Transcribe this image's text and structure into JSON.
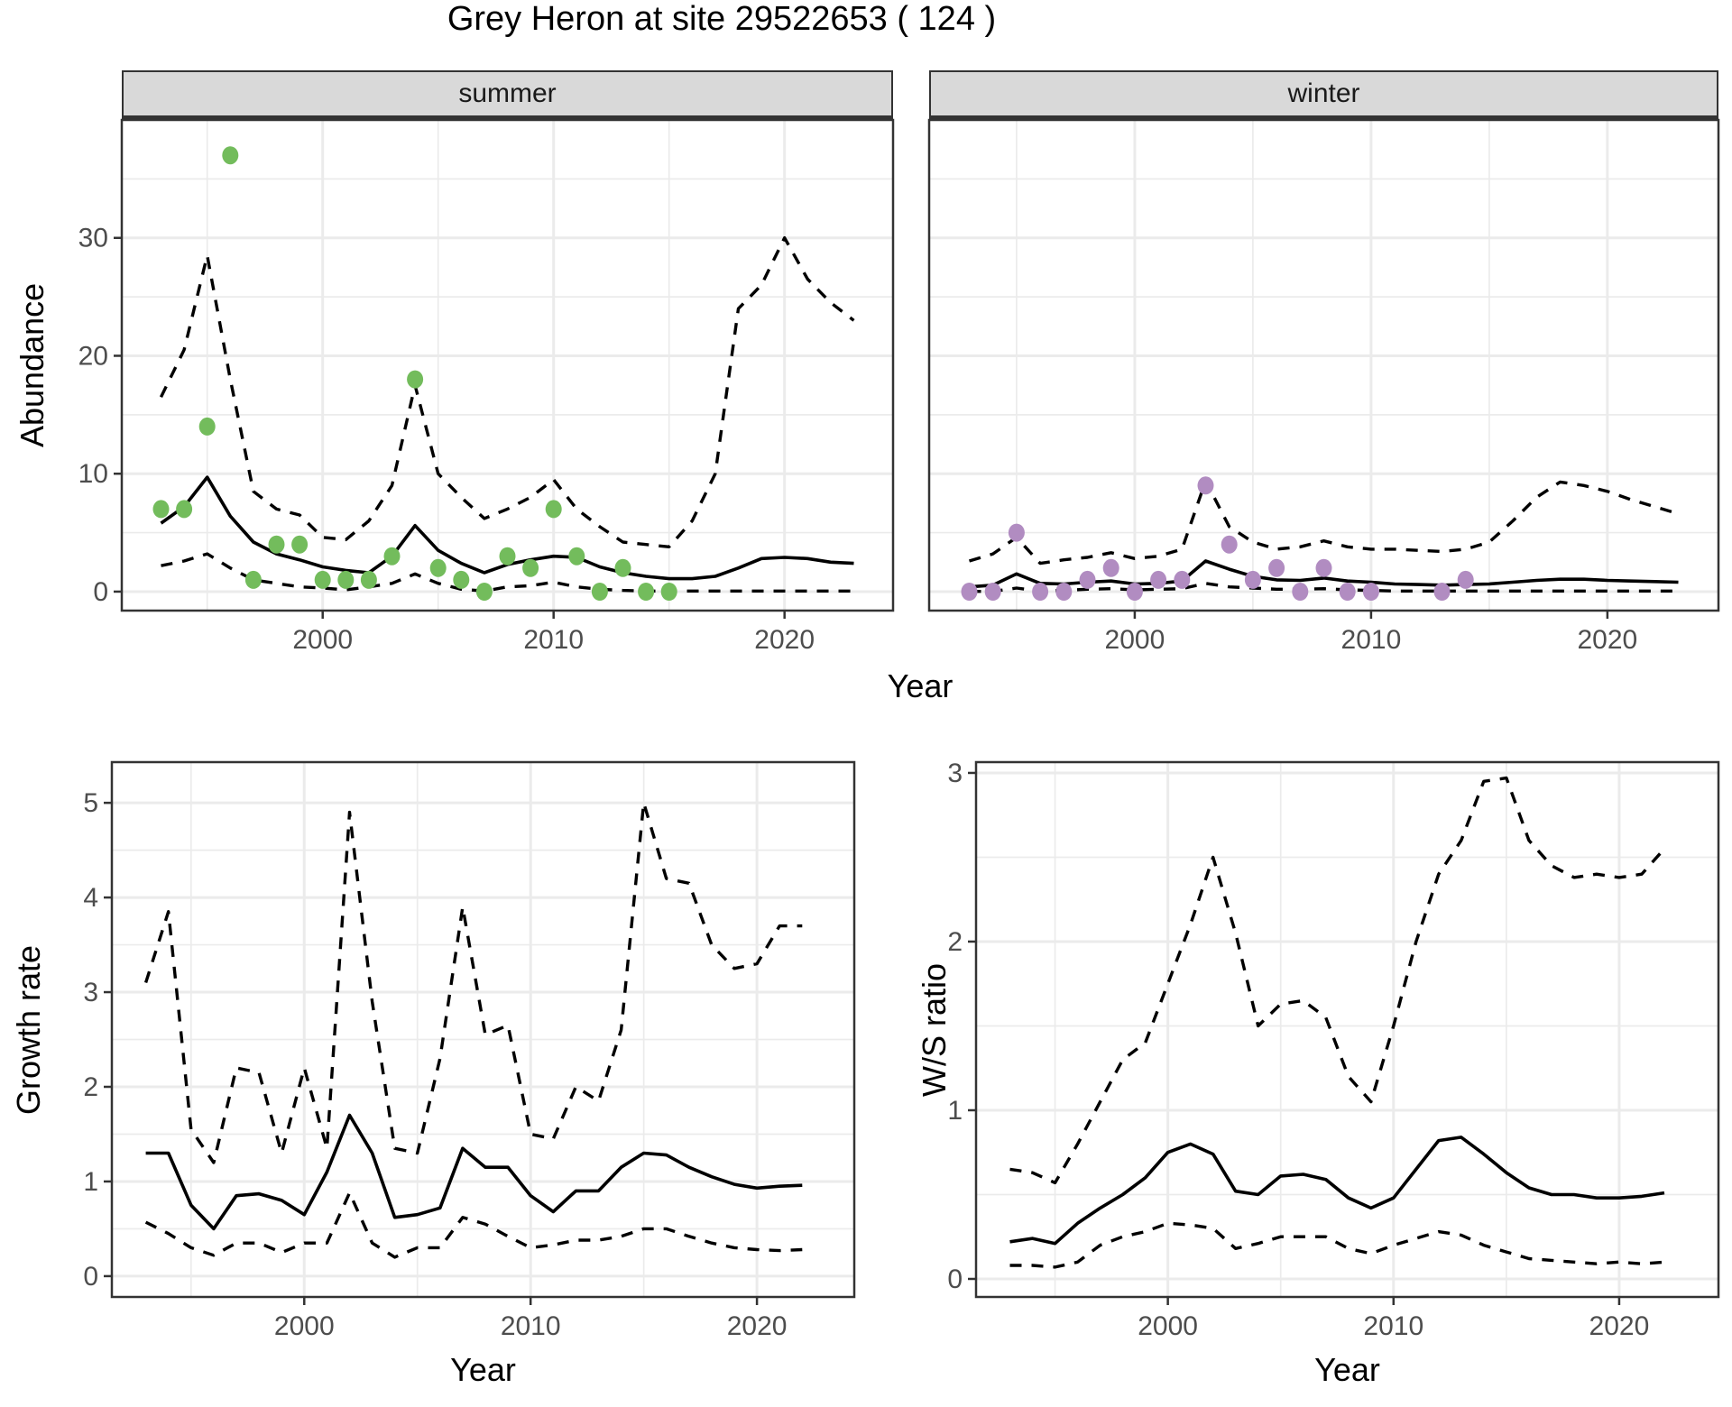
{
  "title": "Grey Heron at site 29522653 ( 124 )",
  "colors": {
    "summer_dot": "#73bc5c",
    "winter_dot": "#b18cc1",
    "strip_bg": "#d9d9d9",
    "grid": "#ebebeb",
    "tick_text": "#4d4d4d",
    "line": "#000000",
    "panel_border": "#333333"
  },
  "chart_data": [
    {
      "id": "abundance-summer",
      "type": "line",
      "facet_label": "summer",
      "ylabel": "Abundance",
      "xlabel": "Year",
      "xlim": [
        1991.3,
        2024.7
      ],
      "ylim": [
        -1.61,
        40.0
      ],
      "x_ticks": [
        2000,
        2010,
        2020
      ],
      "x_minor": [
        1995,
        2005,
        2015
      ],
      "y_ticks": [
        0,
        10,
        20,
        30
      ],
      "y_minor": [
        5,
        15,
        25,
        35
      ],
      "years": [
        1993,
        1994,
        1995,
        1996,
        1997,
        1998,
        1999,
        2000,
        2001,
        2002,
        2003,
        2004,
        2005,
        2006,
        2007,
        2008,
        2009,
        2010,
        2011,
        2012,
        2013,
        2014,
        2015,
        2016,
        2017,
        2018,
        2019,
        2020,
        2021,
        2022,
        2023
      ],
      "series": [
        {
          "name": "median",
          "style": "solid",
          "values": [
            5.8,
            7.2,
            9.7,
            6.4,
            4.2,
            3.2,
            2.7,
            2.1,
            1.8,
            1.6,
            3.0,
            5.6,
            3.5,
            2.4,
            1.6,
            2.3,
            2.7,
            3.0,
            2.9,
            2.1,
            1.6,
            1.3,
            1.1,
            1.1,
            1.3,
            2.0,
            2.8,
            2.9,
            2.8,
            2.5,
            2.4
          ]
        },
        {
          "name": "upper_ci",
          "style": "dashed",
          "values": [
            16.5,
            20.5,
            28.5,
            18.0,
            8.5,
            7.0,
            6.5,
            4.6,
            4.4,
            6.0,
            9.0,
            17.5,
            10.0,
            8.0,
            6.2,
            7.0,
            8.0,
            9.5,
            7.0,
            5.5,
            4.2,
            4.0,
            3.8,
            6.0,
            10.0,
            24.0,
            26.0,
            30.0,
            26.5,
            24.5,
            23.0
          ]
        },
        {
          "name": "lower_ci",
          "style": "dashed",
          "values": [
            2.2,
            2.6,
            3.2,
            2.0,
            1.0,
            0.7,
            0.4,
            0.3,
            0.15,
            0.4,
            0.7,
            1.5,
            0.7,
            0.2,
            0.05,
            0.4,
            0.5,
            0.8,
            0.4,
            0.2,
            0.1,
            0.05,
            0.05,
            0.05,
            0.05,
            0.05,
            0.05,
            0.05,
            0.05,
            0.05,
            0.05
          ]
        }
      ],
      "points": {
        "name": "observed-counts",
        "color_key": "summer_dot",
        "years": [
          1993,
          1994,
          1995,
          1996,
          1997,
          1998,
          1999,
          2000,
          2001,
          2002,
          2003,
          2004,
          2005,
          2006,
          2007,
          2008,
          2009,
          2010,
          2011,
          2012,
          2013,
          2014,
          2015
        ],
        "values": [
          7,
          7,
          14,
          37,
          1,
          4,
          4,
          1,
          1,
          1,
          3,
          18,
          2,
          1,
          0,
          3,
          2,
          7,
          3,
          0,
          2,
          0,
          0
        ]
      }
    },
    {
      "id": "abundance-winter",
      "type": "line",
      "facet_label": "winter",
      "ylabel": "Abundance",
      "xlabel": "Year",
      "xlim": [
        1991.3,
        2024.7
      ],
      "ylim": [
        -1.61,
        40.0
      ],
      "x_ticks": [
        2000,
        2010,
        2020
      ],
      "x_minor": [
        1995,
        2005,
        2015
      ],
      "y_ticks": [
        0,
        10,
        20,
        30
      ],
      "y_minor": [
        5,
        15,
        25,
        35
      ],
      "years": [
        1993,
        1994,
        1995,
        1996,
        1997,
        1998,
        1999,
        2000,
        2001,
        2002,
        2003,
        2004,
        2005,
        2006,
        2007,
        2008,
        2009,
        2010,
        2011,
        2012,
        2013,
        2014,
        2015,
        2016,
        2017,
        2018,
        2019,
        2020,
        2021,
        2022,
        2023
      ],
      "series": [
        {
          "name": "median",
          "style": "solid",
          "values": [
            0.4,
            0.55,
            1.5,
            0.7,
            0.65,
            0.8,
            0.9,
            0.65,
            0.7,
            0.9,
            2.6,
            1.9,
            1.3,
            1.0,
            0.95,
            1.15,
            0.9,
            0.8,
            0.65,
            0.6,
            0.55,
            0.6,
            0.65,
            0.8,
            0.95,
            1.05,
            1.05,
            0.95,
            0.9,
            0.85,
            0.8
          ]
        },
        {
          "name": "upper_ci",
          "style": "dashed",
          "values": [
            2.6,
            3.2,
            4.6,
            2.4,
            2.7,
            2.9,
            3.3,
            2.8,
            3.0,
            3.6,
            9.4,
            5.5,
            4.2,
            3.6,
            3.8,
            4.3,
            3.8,
            3.6,
            3.6,
            3.5,
            3.4,
            3.6,
            4.2,
            6.0,
            8.0,
            9.3,
            9.0,
            8.5,
            7.8,
            7.2,
            6.6
          ]
        },
        {
          "name": "lower_ci",
          "style": "dashed",
          "values": [
            0.02,
            0.02,
            0.3,
            0.05,
            0.1,
            0.2,
            0.25,
            0.15,
            0.2,
            0.25,
            0.7,
            0.4,
            0.3,
            0.2,
            0.2,
            0.25,
            0.15,
            0.1,
            0.05,
            0.05,
            0.05,
            0.05,
            0.05,
            0.05,
            0.05,
            0.05,
            0.05,
            0.05,
            0.05,
            0.05,
            0.05
          ]
        }
      ],
      "points": {
        "name": "observed-counts",
        "color_key": "winter_dot",
        "years": [
          1993,
          1994,
          1995,
          1996,
          1997,
          1998,
          1999,
          2000,
          2001,
          2002,
          2003,
          2004,
          2005,
          2006,
          2007,
          2008,
          2009,
          2010,
          2013,
          2014
        ],
        "values": [
          0,
          0,
          5,
          0,
          0,
          1,
          2,
          0,
          1,
          1,
          9,
          4,
          1,
          2,
          0,
          2,
          0,
          0,
          0,
          1
        ]
      }
    },
    {
      "id": "growth-rate",
      "type": "line",
      "facet_label": "",
      "ylabel": "Growth rate",
      "xlabel": "Year",
      "xlim": [
        1991.5,
        2024.3
      ],
      "ylim": [
        -0.22,
        5.43
      ],
      "x_ticks": [
        2000,
        2010,
        2020
      ],
      "x_minor": [
        1995,
        2005,
        2015
      ],
      "y_ticks": [
        0,
        1,
        2,
        3,
        4,
        5
      ],
      "y_minor": [
        0.5,
        1.5,
        2.5,
        3.5,
        4.5
      ],
      "years": [
        1993,
        1994,
        1995,
        1996,
        1997,
        1998,
        1999,
        2000,
        2001,
        2002,
        2003,
        2004,
        2005,
        2006,
        2007,
        2008,
        2009,
        2010,
        2011,
        2012,
        2013,
        2014,
        2015,
        2016,
        2017,
        2018,
        2019,
        2020,
        2021,
        2022
      ],
      "series": [
        {
          "name": "median",
          "style": "solid",
          "values": [
            1.3,
            1.3,
            0.75,
            0.5,
            0.85,
            0.87,
            0.8,
            0.65,
            1.1,
            1.7,
            1.3,
            0.62,
            0.65,
            0.72,
            1.35,
            1.15,
            1.15,
            0.85,
            0.68,
            0.9,
            0.9,
            1.15,
            1.3,
            1.28,
            1.15,
            1.05,
            0.97,
            0.93,
            0.95,
            0.96
          ]
        },
        {
          "name": "upper_ci",
          "style": "dashed",
          "values": [
            3.1,
            3.85,
            1.55,
            1.2,
            2.2,
            2.15,
            1.3,
            2.2,
            1.35,
            4.9,
            2.9,
            1.35,
            1.3,
            2.3,
            3.9,
            2.55,
            2.65,
            1.5,
            1.45,
            2.0,
            1.85,
            2.6,
            5.0,
            4.2,
            4.15,
            3.5,
            3.25,
            3.3,
            3.7,
            3.7
          ]
        },
        {
          "name": "lower_ci",
          "style": "dashed",
          "values": [
            0.57,
            0.45,
            0.3,
            0.22,
            0.35,
            0.35,
            0.25,
            0.35,
            0.35,
            0.88,
            0.35,
            0.2,
            0.3,
            0.3,
            0.62,
            0.55,
            0.42,
            0.3,
            0.33,
            0.38,
            0.38,
            0.42,
            0.5,
            0.5,
            0.42,
            0.35,
            0.3,
            0.28,
            0.27,
            0.28
          ]
        }
      ]
    },
    {
      "id": "ws-ratio",
      "type": "line",
      "facet_label": "",
      "ylabel": "W/S ratio",
      "xlabel": "Year",
      "xlim": [
        1991.5,
        2024.4
      ],
      "ylim": [
        -0.107,
        3.064
      ],
      "x_ticks": [
        2000,
        2010,
        2020
      ],
      "x_minor": [
        1995,
        2005,
        2015
      ],
      "y_ticks": [
        0,
        1,
        2,
        3
      ],
      "y_minor": [
        0.5,
        1.5,
        2.5
      ],
      "years": [
        1993,
        1994,
        1995,
        1996,
        1997,
        1998,
        1999,
        2000,
        2001,
        2002,
        2003,
        2004,
        2005,
        2006,
        2007,
        2008,
        2009,
        2010,
        2011,
        2012,
        2013,
        2014,
        2015,
        2016,
        2017,
        2018,
        2019,
        2020,
        2021,
        2022
      ],
      "series": [
        {
          "name": "median",
          "style": "solid",
          "values": [
            0.22,
            0.24,
            0.21,
            0.33,
            0.42,
            0.5,
            0.6,
            0.75,
            0.8,
            0.74,
            0.52,
            0.5,
            0.61,
            0.62,
            0.59,
            0.48,
            0.42,
            0.48,
            0.65,
            0.82,
            0.84,
            0.74,
            0.63,
            0.54,
            0.5,
            0.5,
            0.48,
            0.48,
            0.49,
            0.51
          ]
        },
        {
          "name": "upper_ci",
          "style": "dashed",
          "values": [
            0.65,
            0.63,
            0.57,
            0.8,
            1.05,
            1.3,
            1.4,
            1.75,
            2.1,
            2.5,
            2.05,
            1.5,
            1.63,
            1.65,
            1.55,
            1.2,
            1.05,
            1.5,
            2.0,
            2.4,
            2.6,
            2.95,
            2.97,
            2.6,
            2.45,
            2.38,
            2.4,
            2.38,
            2.4,
            2.55
          ]
        },
        {
          "name": "lower_ci",
          "style": "dashed",
          "values": [
            0.08,
            0.08,
            0.07,
            0.1,
            0.2,
            0.25,
            0.28,
            0.33,
            0.32,
            0.3,
            0.18,
            0.21,
            0.25,
            0.25,
            0.25,
            0.18,
            0.15,
            0.2,
            0.24,
            0.28,
            0.26,
            0.2,
            0.16,
            0.12,
            0.11,
            0.1,
            0.09,
            0.1,
            0.09,
            0.1
          ]
        }
      ]
    }
  ]
}
